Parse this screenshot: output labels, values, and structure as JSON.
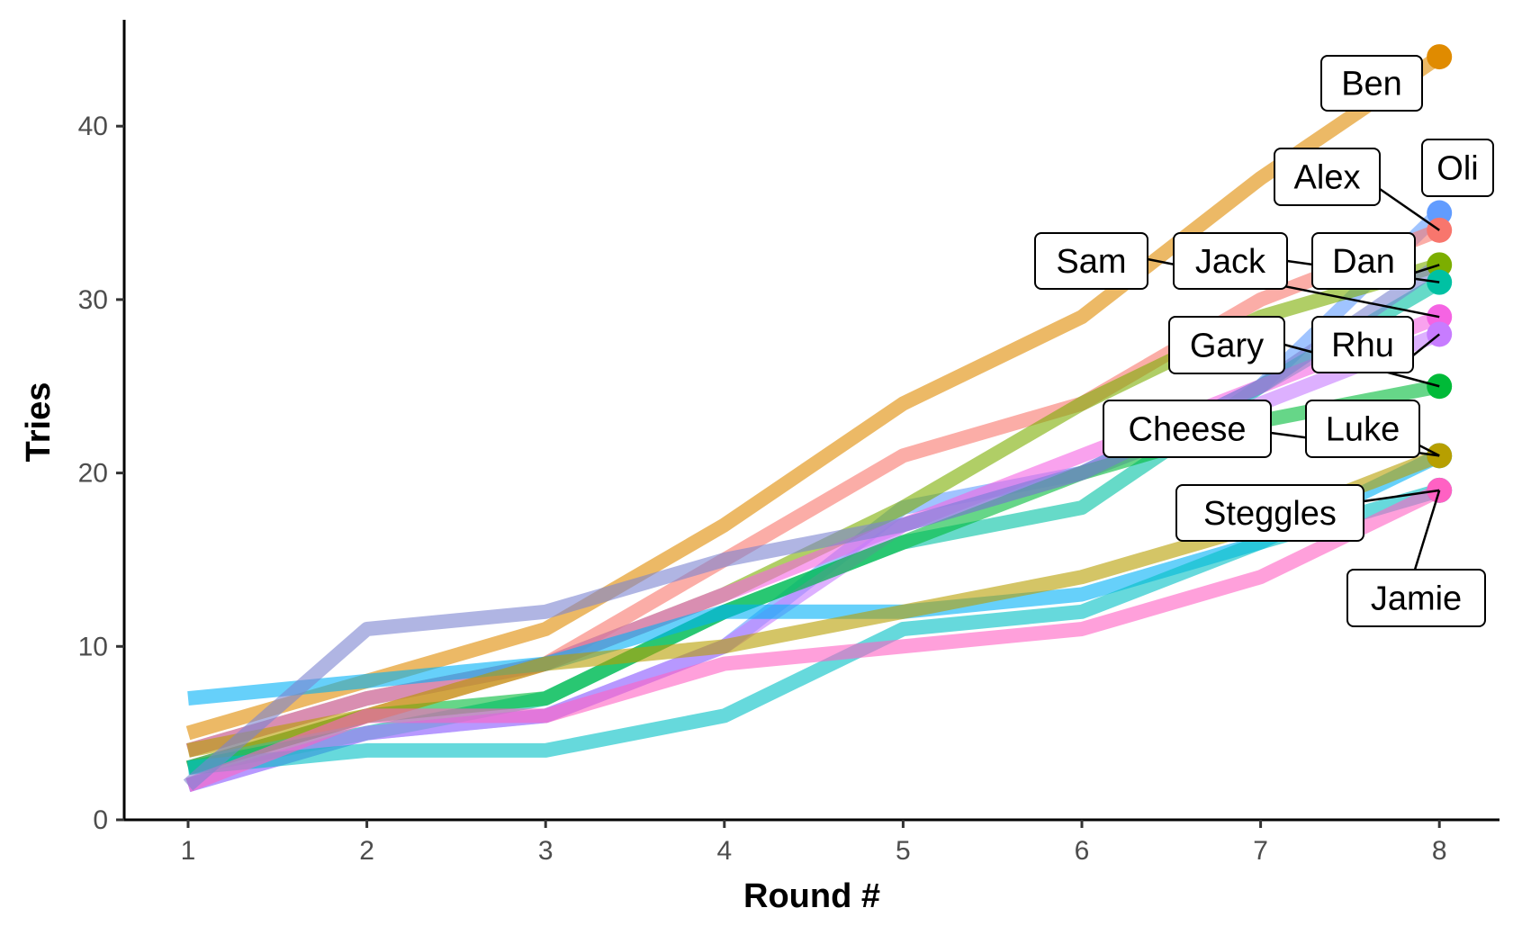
{
  "chart_data": {
    "type": "line",
    "title": "",
    "xlabel": "Round #",
    "ylabel": "Tries",
    "x": [
      1,
      2,
      3,
      4,
      5,
      6,
      7,
      8
    ],
    "xlim": [
      0.65,
      8.35
    ],
    "ylim": [
      0,
      46
    ],
    "yticks": [
      0,
      10,
      20,
      30,
      40
    ],
    "xticks": [
      1,
      2,
      3,
      4,
      5,
      6,
      7,
      8
    ],
    "grid": false,
    "legend": "none",
    "series": [
      {
        "name": "Ben",
        "color": "#e08b00",
        "values": [
          5,
          8,
          11,
          17,
          24,
          29,
          37,
          44
        ]
      },
      {
        "name": "Oli",
        "color": "#619cff",
        "values": [
          2,
          5,
          6,
          10,
          18,
          20,
          25,
          35
        ]
      },
      {
        "name": "Alex",
        "color": "#f8766d",
        "values": [
          3,
          6,
          9,
          15,
          21,
          24,
          30,
          34
        ]
      },
      {
        "name": "Dan",
        "color": "#7cae00",
        "values": [
          4,
          7,
          9,
          13,
          18,
          24,
          29,
          32
        ]
      },
      {
        "name": "Jack",
        "color": "#00c1a3",
        "values": [
          3,
          5,
          7,
          12,
          16,
          18,
          25,
          31
        ]
      },
      {
        "name": "Sam",
        "color": "#f564e3",
        "values": [
          4,
          7,
          9,
          13,
          17,
          21,
          25,
          29
        ]
      },
      {
        "name": "Rhu",
        "color": "#c77cff",
        "values": [
          2,
          5,
          6,
          10,
          17,
          20,
          24,
          28
        ]
      },
      {
        "name": "Gary",
        "color": "#00ba38",
        "values": [
          3,
          6,
          7,
          12,
          16,
          20,
          23,
          25
        ]
      },
      {
        "name": "Luke",
        "color": "#00b0f6",
        "values": [
          7,
          8,
          9,
          12,
          12,
          13,
          16,
          21
        ]
      },
      {
        "name": "Cheese",
        "color": "#b79f00",
        "values": [
          4,
          6,
          9,
          10,
          12,
          14,
          17,
          21
        ]
      },
      {
        "name": "Steggles",
        "color": "#00bfc4",
        "values": [
          3,
          4,
          4,
          6,
          11,
          12,
          16,
          19
        ]
      },
      {
        "name": "Jamie",
        "color": "#ff61c3",
        "values": [
          2,
          6,
          6,
          9,
          10,
          11,
          14,
          19
        ]
      },
      {
        "name": "",
        "color": "#7b84d0",
        "values": [
          2,
          11,
          12,
          15,
          17,
          20,
          25,
          32
        ]
      }
    ],
    "labels": [
      "Ben",
      "Oli",
      "Alex",
      "Dan",
      "Jack",
      "Sam",
      "Rhu",
      "Gary",
      "Luke",
      "Cheese",
      "Steggles",
      "Jamie"
    ]
  }
}
